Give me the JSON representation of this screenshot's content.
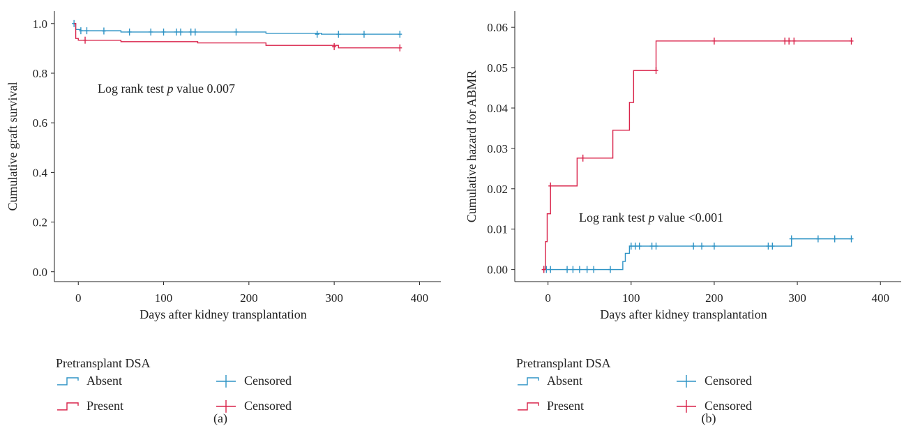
{
  "colors": {
    "absent": "#2e93c5",
    "present": "#d9234a"
  },
  "chart_data": [
    {
      "panel": "(a)",
      "type": "step",
      "xlabel": "Days after kidney transplantation",
      "ylabel": "Cumulative graft survival",
      "xlim": [
        -28,
        425
      ],
      "ylim": [
        -0.04,
        1.05
      ],
      "xticks": [
        0,
        100,
        200,
        300,
        400
      ],
      "yticks": [
        0.0,
        0.2,
        0.4,
        0.6,
        0.8,
        1.0
      ],
      "ytick_labels": [
        "0.0",
        "0.2",
        "0.4",
        "0.6",
        "0.8",
        "1.0"
      ],
      "annotation": {
        "prefix": "Log rank test ",
        "italic": "p",
        "suffix": " value 0.007"
      },
      "legend": {
        "title": "Pretransplant DSA",
        "entries": [
          {
            "label": "Absent",
            "censored_label": "Censored"
          },
          {
            "label": "Present",
            "censored_label": "Censored"
          }
        ]
      },
      "series": [
        {
          "name": "Absent",
          "x": [
            -5,
            -3,
            3,
            50,
            220,
            285,
            377
          ],
          "y": [
            1.0,
            0.976,
            0.971,
            0.966,
            0.961,
            0.957,
            0.957
          ],
          "censored_x": [
            -5,
            3,
            10,
            30,
            60,
            85,
            100,
            115,
            120,
            132,
            137,
            185,
            280,
            305,
            335,
            377
          ],
          "censored_y": [
            1.0,
            0.971,
            0.971,
            0.97,
            0.966,
            0.966,
            0.966,
            0.966,
            0.966,
            0.966,
            0.966,
            0.966,
            0.957,
            0.957,
            0.957,
            0.957
          ]
        },
        {
          "name": "Present",
          "x": [
            -5,
            -3,
            0,
            50,
            140,
            220,
            305,
            377
          ],
          "y": [
            1.0,
            0.94,
            0.933,
            0.927,
            0.922,
            0.912,
            0.902,
            0.902
          ],
          "censored_x": [
            8,
            300,
            377
          ],
          "censored_y": [
            0.933,
            0.907,
            0.902
          ]
        }
      ]
    },
    {
      "panel": "(b)",
      "type": "step",
      "xlabel": "Days after kidney transplantation",
      "ylabel": "Cumulative hazard for ABMR",
      "xlim": [
        -40,
        425
      ],
      "ylim": [
        -0.003,
        0.064
      ],
      "xticks": [
        0,
        100,
        200,
        300,
        400
      ],
      "yticks": [
        0.0,
        0.01,
        0.02,
        0.03,
        0.04,
        0.05,
        0.06
      ],
      "ytick_labels": [
        "0.00",
        "0.01",
        "0.02",
        "0.03",
        "0.04",
        "0.05",
        "0.06"
      ],
      "annotation": {
        "prefix": "Log rank test ",
        "italic": "p",
        "suffix": " value <0.001"
      },
      "legend": {
        "title": "Pretransplant DSA",
        "entries": [
          {
            "label": "Absent",
            "censored_label": "Censored"
          },
          {
            "label": "Present",
            "censored_label": "Censored"
          }
        ]
      },
      "series": [
        {
          "name": "Absent",
          "x": [
            -5,
            88,
            90,
            93,
            98,
            102,
            293,
            365
          ],
          "y": [
            0.0,
            0.0,
            0.002,
            0.004,
            0.0058,
            0.0058,
            0.0076,
            0.0076
          ],
          "censored_x": [
            -5,
            -2,
            3,
            23,
            30,
            38,
            47,
            55,
            75,
            100,
            105,
            110,
            125,
            130,
            175,
            185,
            200,
            265,
            270,
            293,
            325,
            345,
            365
          ],
          "censored_y": [
            0.0,
            0.0,
            0.0,
            0.0,
            0.0,
            0.0,
            0.0,
            0.0,
            0.0,
            0.0058,
            0.0058,
            0.0058,
            0.0058,
            0.0058,
            0.0058,
            0.0058,
            0.0058,
            0.0058,
            0.0058,
            0.0076,
            0.0076,
            0.0076,
            0.0076
          ]
        },
        {
          "name": "Present",
          "x": [
            -5,
            -3,
            -1,
            3,
            35,
            78,
            98,
            103,
            130,
            365
          ],
          "y": [
            0.0,
            0.0069,
            0.0138,
            0.0207,
            0.0276,
            0.0345,
            0.0414,
            0.0493,
            0.0566,
            0.0566
          ],
          "censored_x": [
            -5,
            3,
            42,
            130,
            200,
            285,
            290,
            296,
            365
          ],
          "censored_y": [
            0.0,
            0.0207,
            0.0276,
            0.0493,
            0.0566,
            0.0566,
            0.0566,
            0.0566,
            0.0566
          ]
        }
      ]
    }
  ]
}
